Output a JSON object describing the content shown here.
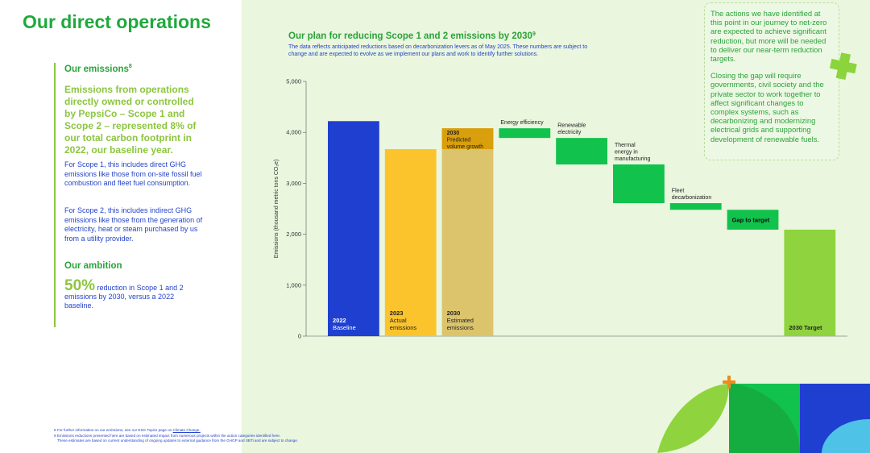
{
  "header": {
    "title": "Our direct operations"
  },
  "emissions": {
    "heading": "Our emissions",
    "footnote_ref": "8",
    "highlight": "Emissions from operations directly owned or controlled by PepsiCo – Scope 1 and Scope 2 – represented 8% of our total carbon footprint in 2022, our baseline year.",
    "scope1": "For Scope 1, this includes direct GHG emissions like those from on-site fossil fuel combustion and fleet fuel consumption.",
    "scope2": "For Scope 2, this includes indirect GHG emissions like those from the generation of electricity, heat or steam purchased by us from a utility provider."
  },
  "ambition": {
    "heading": "Our ambition",
    "figure": "50%",
    "text": "reduction in Scope 1 and 2 emissions by 2030, versus a 2022 baseline."
  },
  "callout": {
    "paragraphs": [
      "The actions we have identified at this point in our journey to net-zero are expected to achieve significant reduction, but more will be needed to deliver our near-term reduction targets.",
      "Closing the gap will require governments, civil society and the private sector to work together to affect significant changes to complex systems, such as decarbonizing and modernizing electrical grids and supporting development of renewable fuels."
    ]
  },
  "footnotes": {
    "note8": "8 For further information on our emissions, see our ESG Topics page on",
    "note8_link": "Climate Change.",
    "note9": [
      "9 Emissions reductions presented here are based on estimated impact from numerous projects within the action categories identified here.",
      "These estimates are based on current understanding of ongoing updates to external guidance from the GHGP and SBTi and are subject to change."
    ]
  },
  "chart_data": {
    "type": "waterfall",
    "title": "Our plan for reducing Scope 1 and 2 emissions by 2030",
    "title_ref": "9",
    "subtitle": [
      "The data reflects anticipated reductions based on decarbonization levers as of May 2025. These numbers are subject to",
      "change and are expected to evolve as we implement our plans and work to identify further solutions."
    ],
    "y_label": "Emissions (thousand metric tons CO₂e)",
    "categories": [
      [
        "2022",
        "Baseline"
      ],
      [
        "2023",
        "Actual",
        "emissions"
      ],
      [
        "2030",
        "Estimated",
        "emissions"
      ],
      [
        "Energy efficiency"
      ],
      [
        "Renewable",
        "electricity"
      ],
      [
        "Thermal",
        "energy in",
        "manufacturing"
      ],
      [
        "Fleet",
        "decarbonization"
      ],
      [
        "Gap to target"
      ],
      [
        "2030 Target"
      ]
    ],
    "kinds": [
      "total",
      "total",
      "total",
      "delta",
      "delta",
      "delta",
      "delta",
      "delta",
      "total"
    ],
    "values": [
      4220,
      3670,
      4080,
      -190,
      -520,
      -760,
      -130,
      -390,
      2090
    ],
    "colors": [
      "#1f3fd0",
      "#fbc42c",
      "#dcc46c",
      "#11c24c",
      "#11c24c",
      "#11c24c",
      "#11c24c",
      "#11c24c",
      "#8fd43e"
    ],
    "volume_growth": {
      "value": 410,
      "label": [
        "2030",
        "Predicted",
        "volume growth"
      ],
      "color": "#d99f0c"
    },
    "ylim": [
      0,
      5000
    ],
    "yticks": [
      0,
      {
        "value": 1000,
        "label": "1,000"
      },
      {
        "value": 2000,
        "label": "2,000"
      },
      {
        "value": 3000,
        "label": "3,000"
      },
      {
        "value": 4000,
        "label": "4,000"
      },
      {
        "value": 5000,
        "label": "5,000"
      }
    ]
  }
}
